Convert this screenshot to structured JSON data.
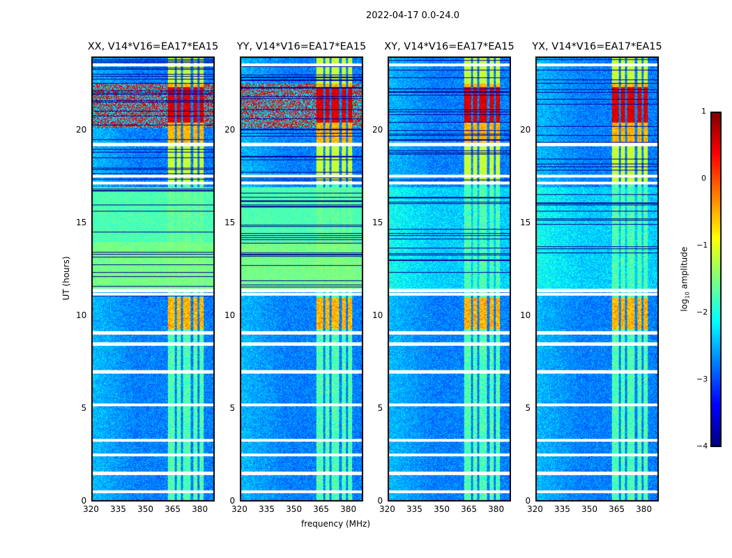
{
  "chart_data": {
    "type": "heatmap",
    "title": "2022-04-17 0.0-24.0",
    "xlabel": "frequency (MHz)",
    "ylabel": "UT (hours)",
    "xlim": [
      320,
      388
    ],
    "ylim": [
      0,
      24
    ],
    "xticks": [
      "320",
      "335",
      "350",
      "365",
      "380"
    ],
    "xtick_values": [
      320,
      335,
      350,
      365,
      380
    ],
    "yticks": [
      "0",
      "5",
      "10",
      "15",
      "20"
    ],
    "ytick_values": [
      0,
      5,
      10,
      15,
      20
    ],
    "panels": [
      {
        "title": "XX, V14*V16=EA17*EA15",
        "broadband_12_17h": true
      },
      {
        "title": "YY, V14*V16=EA17*EA15",
        "broadband_12_17h": true
      },
      {
        "title": "XY, V14*V16=EA17*EA15",
        "broadband_12_17h": false
      },
      {
        "title": "YX, V14*V16=EA17*EA15",
        "broadband_12_17h": false
      }
    ],
    "rfi_band_mhz": [
      362,
      382
    ],
    "strong_rfi_hours": [
      [
        9.3,
        11.0
      ],
      [
        19.3,
        22.6
      ]
    ],
    "flagged_hours": [
      0.5,
      1.5,
      2.5,
      3.3,
      5.2,
      7.0,
      8.5,
      9.1,
      11.2,
      11.4,
      17.2,
      17.6,
      19.3,
      23.6
    ],
    "colorbar": {
      "label": "log10 amplitude",
      "label_main": "log",
      "label_sub": "10",
      "label_rest": " amplitude",
      "ticks": [
        "1",
        "0",
        "−1",
        "−2",
        "−3",
        "−4"
      ],
      "tick_values": [
        1,
        0,
        -1,
        -2,
        -3,
        -4
      ],
      "range": [
        -4,
        1
      ],
      "colormap": "jet"
    }
  }
}
